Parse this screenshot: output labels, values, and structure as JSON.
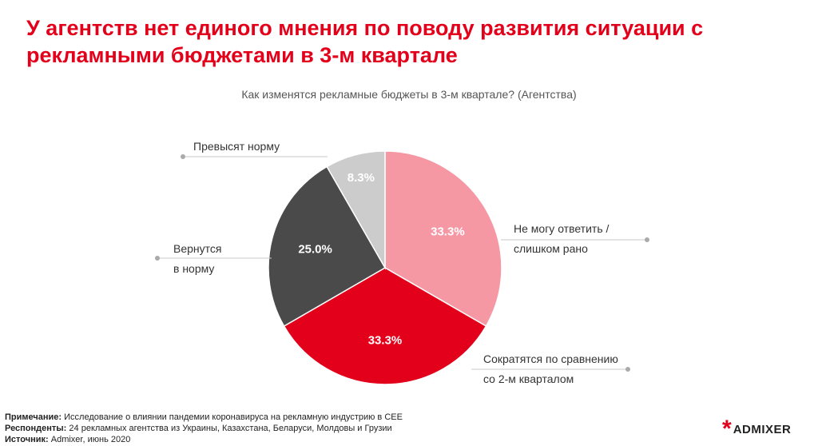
{
  "header": {
    "title_line1": "У агентств нет единого мнения по поводу развития ситуации с",
    "title_line2": "рекламными бюджетами в 3-м квартале"
  },
  "chart_data": {
    "type": "pie",
    "title": "Как изменятся рекламные бюджеты в 3-м квартале? (Агентства)",
    "slices": [
      {
        "label_lines": [
          "Не могу ответить /",
          "слишком рано"
        ],
        "value": 33.3,
        "value_label": "33.3%",
        "color": "#f598a4"
      },
      {
        "label_lines": [
          "Сократятся по сравнению",
          "со 2-м кварталом"
        ],
        "value": 33.3,
        "value_label": "33.3%",
        "color": "#e3001b"
      },
      {
        "label_lines": [
          "Вернутся",
          "в норму"
        ],
        "value": 25.0,
        "value_label": "25.0%",
        "color": "#4a4a4a"
      },
      {
        "label_lines": [
          "Превысят норму"
        ],
        "value": 8.3,
        "value_label": "8.3%",
        "color": "#cccccc"
      }
    ]
  },
  "footer": {
    "note_label": "Примечание:",
    "note_text": "Исследование о влиянии пандемии коронавируса на рекламную индустрию в СЕЕ",
    "respondents_label": "Респонденты:",
    "respondents_text": "24 рекламных агентства из Украины, Казахстана, Беларуси, Молдовы и Грузии",
    "source_label": "Источник:",
    "source_text": "Admixer, июнь 2020"
  },
  "logo": {
    "mark": "*",
    "text": "ADMIXER",
    "color": "#e3001b"
  }
}
